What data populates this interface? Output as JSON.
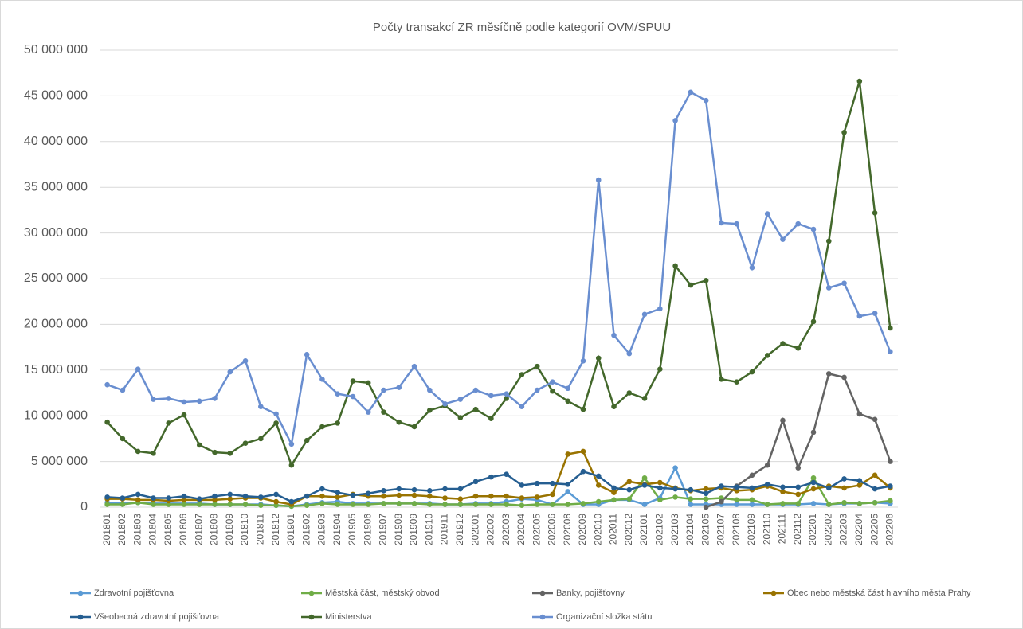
{
  "chart_data": {
    "type": "line",
    "title": "Počty transakcí ZR měsíčně podle kategorií OVM/SPUU",
    "categories": [
      "201801",
      "201802",
      "201803",
      "201804",
      "201805",
      "201806",
      "201807",
      "201808",
      "201809",
      "201810",
      "201811",
      "201812",
      "201901",
      "201902",
      "201903",
      "201904",
      "201905",
      "201906",
      "201907",
      "201908",
      "201909",
      "201910",
      "201911",
      "201912",
      "202001",
      "202002",
      "202003",
      "202004",
      "202005",
      "202006",
      "202008",
      "202009",
      "202010",
      "202011",
      "202012",
      "202101",
      "202102",
      "202103",
      "202104",
      "202105",
      "202107",
      "202108",
      "202109",
      "202110",
      "202111",
      "202112",
      "202201",
      "202202",
      "202203",
      "202204",
      "202205",
      "202206"
    ],
    "ylim": [
      0,
      50000000
    ],
    "yticks": [
      0,
      {
        "value": 5000000,
        "label": "5 000 000"
      },
      {
        "value": 10000000,
        "label": "10 000 000"
      },
      {
        "value": 15000000,
        "label": "15 000 000"
      },
      {
        "value": 20000000,
        "label": "20 000 000"
      },
      {
        "value": 25000000,
        "label": "25 000 000"
      },
      {
        "value": 30000000,
        "label": "30 000 000"
      },
      {
        "value": 35000000,
        "label": "35 000 000"
      },
      {
        "value": 40000000,
        "label": "40 000 000"
      },
      {
        "value": 45000000,
        "label": "45 000 000"
      },
      {
        "value": 50000000,
        "label": "50 000 000"
      }
    ],
    "grid": true,
    "legend": "bottom",
    "series": [
      {
        "name": "Zdravotní pojišťovna",
        "color": "#5b9bd5",
        "values": [
          500000.0,
          400000.0,
          500000.0,
          400000.0,
          400000.0,
          400000.0,
          400000.0,
          300000.0,
          300000.0,
          300000.0,
          300000.0,
          200000.0,
          100000.0,
          300000.0,
          500000.0,
          600000.0,
          400000.0,
          400000.0,
          400000.0,
          400000.0,
          400000.0,
          400000.0,
          300000.0,
          300000.0,
          400000.0,
          400000.0,
          600000.0,
          900000.0,
          800000.0,
          300000.0,
          1700000.0,
          300000.0,
          300000.0,
          800000.0,
          800000.0,
          300000.0,
          1000000.0,
          4300000.0,
          300000.0,
          300000.0,
          300000.0,
          300000.0,
          300000.0,
          300000.0,
          300000.0,
          300000.0,
          400000.0,
          300000.0,
          400000.0,
          400000.0,
          500000.0,
          400000.0
        ]
      },
      {
        "name": "Městská část, městský obvod",
        "color": "#70ad47",
        "values": [
          300000.0,
          300000.0,
          500000.0,
          300000.0,
          300000.0,
          300000.0,
          300000.0,
          300000.0,
          300000.0,
          300000.0,
          200000.0,
          200000.0,
          100000.0,
          200000.0,
          400000.0,
          300000.0,
          300000.0,
          300000.0,
          400000.0,
          400000.0,
          400000.0,
          300000.0,
          300000.0,
          300000.0,
          300000.0,
          300000.0,
          300000.0,
          200000.0,
          300000.0,
          300000.0,
          300000.0,
          400000.0,
          600000.0,
          800000.0,
          900000.0,
          3200000.0,
          800000.0,
          1100000.0,
          900000.0,
          900000.0,
          1000000.0,
          800000.0,
          800000.0,
          300000.0,
          400000.0,
          400000.0,
          3200000.0,
          300000.0,
          500000.0,
          400000.0,
          500000.0,
          700000.0
        ]
      },
      {
        "name": "Banky, pojišťovny",
        "color": "#636363",
        "values": [
          null,
          null,
          null,
          null,
          null,
          null,
          null,
          null,
          null,
          null,
          null,
          null,
          null,
          null,
          null,
          null,
          null,
          null,
          null,
          null,
          null,
          null,
          null,
          null,
          null,
          null,
          null,
          null,
          null,
          null,
          null,
          null,
          null,
          null,
          null,
          null,
          null,
          null,
          null,
          0,
          600000.0,
          2300000.0,
          3500000.0,
          4600000.0,
          9500000.0,
          4300000.0,
          8200000.0,
          14600000.0,
          14200000.0,
          10200000.0,
          9600000.0,
          5000000.0
        ]
      },
      {
        "name": "Obec nebo městská část hlavního města Prahy",
        "color": "#997300",
        "values": [
          900000.0,
          900000.0,
          800000.0,
          800000.0,
          700000.0,
          800000.0,
          800000.0,
          800000.0,
          900000.0,
          1000000.0,
          1000000.0,
          600000.0,
          300000.0,
          1200000.0,
          1200000.0,
          1100000.0,
          1400000.0,
          1200000.0,
          1200000.0,
          1300000.0,
          1300000.0,
          1200000.0,
          1000000.0,
          900000.0,
          1200000.0,
          1200000.0,
          1200000.0,
          1000000.0,
          1100000.0,
          1400000.0,
          5800000.0,
          6100000.0,
          2400000.0,
          1600000.0,
          2800000.0,
          2500000.0,
          2700000.0,
          2100000.0,
          1800000.0,
          2000000.0,
          2100000.0,
          1800000.0,
          1900000.0,
          2300000.0,
          1700000.0,
          1400000.0,
          2000000.0,
          2300000.0,
          2100000.0,
          2400000.0,
          3500000.0,
          2100000.0
        ]
      },
      {
        "name": "Všeobecná zdravotní pojišťovna",
        "color": "#255e91",
        "values": [
          1100000.0,
          1000000.0,
          1400000.0,
          1000000.0,
          1000000.0,
          1200000.0,
          900000.0,
          1200000.0,
          1400000.0,
          1200000.0,
          1100000.0,
          1400000.0,
          600000.0,
          1200000.0,
          2000000.0,
          1600000.0,
          1300000.0,
          1500000.0,
          1800000.0,
          2000000.0,
          1900000.0,
          1800000.0,
          2000000.0,
          2000000.0,
          2800000.0,
          3300000.0,
          3600000.0,
          2400000.0,
          2600000.0,
          2600000.0,
          2500000.0,
          3900000.0,
          3400000.0,
          2100000.0,
          1900000.0,
          2400000.0,
          2100000.0,
          2000000.0,
          1900000.0,
          1500000.0,
          2300000.0,
          2200000.0,
          2100000.0,
          2500000.0,
          2200000.0,
          2200000.0,
          2700000.0,
          2100000.0,
          3100000.0,
          2900000.0,
          2000000.0,
          2300000.0
        ]
      },
      {
        "name": "Ministerstva",
        "color": "#43682b",
        "values": [
          9300000.0,
          7500000.0,
          6100000.0,
          5900000.0,
          9200000.0,
          10100000.0,
          6800000.0,
          6000000.0,
          5900000.0,
          7000000.0,
          7500000.0,
          9200000.0,
          4600000.0,
          7300000.0,
          8800000.0,
          9200000.0,
          13800000.0,
          13600000.0,
          10400000.0,
          9300000.0,
          8800000.0,
          10600000.0,
          11100000.0,
          9800000.0,
          10700000.0,
          9700000.0,
          11900000.0,
          14500000.0,
          15400000.0,
          12700000.0,
          11600000.0,
          10700000.0,
          16300000.0,
          11000000.0,
          12500000.0,
          11900000.0,
          15100000.0,
          26400000.0,
          24300000.0,
          24800000.0,
          14000000.0,
          13700000.0,
          14800000.0,
          16600000.0,
          17900000.0,
          17400000.0,
          20300000.0,
          29100000.0,
          41000000.0,
          46600000.0,
          32200000.0,
          19600000.0
        ]
      },
      {
        "name": "Organizační složka státu",
        "color": "#698ed0",
        "values": [
          13400000.0,
          12800000.0,
          15100000.0,
          11800000.0,
          11900000.0,
          11500000.0,
          11600000.0,
          11900000.0,
          14800000.0,
          16000000.0,
          11000000.0,
          10200000.0,
          6900000.0,
          16700000.0,
          14000000.0,
          12400000.0,
          12100000.0,
          10400000.0,
          12800000.0,
          13100000.0,
          15400000.0,
          12800000.0,
          11300000.0,
          11800000.0,
          12800000.0,
          12200000.0,
          12400000.0,
          11000000.0,
          12800000.0,
          13700000.0,
          13000000.0,
          16000000.0,
          35800000.0,
          18800000.0,
          16800000.0,
          21100000.0,
          21700000.0,
          42300000.0,
          45400000.0,
          44500000.0,
          31100000.0,
          31000000.0,
          26200000.0,
          32100000.0,
          29300000.0,
          31000000.0,
          30400000.0,
          24000000.0,
          24500000.0,
          20900000.0,
          21200000.0,
          17000000.0
        ]
      }
    ]
  }
}
